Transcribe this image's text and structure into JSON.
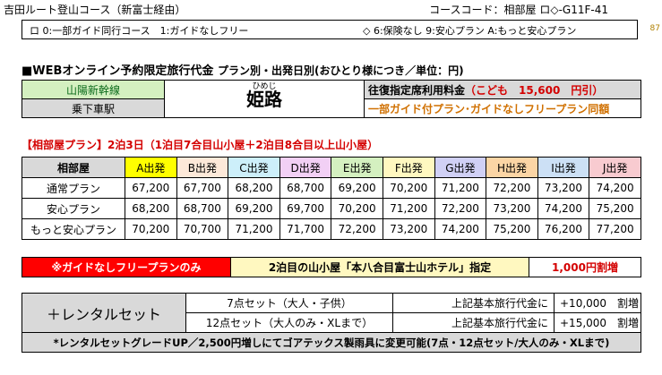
{
  "header": {
    "course_name": "吉田ルート登山コース（新富士経由）",
    "course_code": "コースコード：相部屋 ロ◇-G11F-41"
  },
  "options": {
    "guide": "ロ 0:一部ガイド同行コース　1:ガイドなしフリー",
    "insurance": "◇ 6:保険なし 9:安心プラン A:もっと安心プラン"
  },
  "side_number": "87",
  "title": {
    "main": "■WEBオンライン予約限定旅行代金",
    "sub": "プラン別・出発日別(おひとり様につき／単位：円)"
  },
  "info": {
    "line_label": "山陽新幹線",
    "station_label": "乗下車駅",
    "station_ruby": "ひめじ",
    "station_name": "姫路",
    "fare_label": "往復指定席利用料金",
    "fare_child": "（こども　15,600　円引）",
    "plan_note": "一部ガイド付プラン･ガイドなしフリープラン同額"
  },
  "plan": {
    "title": "【相部屋プラン】2泊3日（1泊目7合目山小屋＋2泊目8合目以上山小屋）",
    "corner_label": "相部屋",
    "departures": [
      {
        "label": "A出発",
        "color": "#ffff00"
      },
      {
        "label": "B出発",
        "color": "#fde9d9"
      },
      {
        "label": "C出発",
        "color": "#cdeffa"
      },
      {
        "label": "D出発",
        "color": "#f2d0f5"
      },
      {
        "label": "E出発",
        "color": "#d4f0c0"
      },
      {
        "label": "F出発",
        "color": "#fff8c0"
      },
      {
        "label": "G出発",
        "color": "#d0d0f5"
      },
      {
        "label": "H出発",
        "color": "#fbd5a5"
      },
      {
        "label": "I出発",
        "color": "#cce0f5"
      },
      {
        "label": "J出発",
        "color": "#f8cbd0"
      }
    ],
    "rows": [
      {
        "label": "通常プラン",
        "prices": [
          "67,200",
          "67,700",
          "68,200",
          "68,700",
          "69,200",
          "70,200",
          "71,200",
          "72,200",
          "73,200",
          "74,200"
        ]
      },
      {
        "label": "安心プラン",
        "prices": [
          "68,200",
          "68,700",
          "69,200",
          "69,700",
          "70,200",
          "71,200",
          "72,200",
          "73,200",
          "74,200",
          "75,200"
        ]
      },
      {
        "label": "もっと安心プラン",
        "prices": [
          "70,200",
          "70,700",
          "71,200",
          "71,700",
          "72,200",
          "73,200",
          "74,200",
          "75,200",
          "76,200",
          "77,200"
        ]
      }
    ]
  },
  "banner": {
    "no_guide": "※ガイドなしフリープランのみ",
    "hut_note": "2泊目の山小屋「本八合目富士山ホテル」指定",
    "surcharge": "1,000円割増"
  },
  "rental": {
    "label": "＋レンタルセット",
    "set7": "7点セット（大人・子供）",
    "set12": "12点セット（大人のみ・XLまで）",
    "base_text": "上記基本旅行代金に",
    "set7_amount": "+10,000　割増",
    "set12_amount": "+15,000　割増",
    "note": "*レンタルセットグレードUP／2,500円増しにてゴアテックス製雨具に変更可能(7点・12点セット/大人のみ・XLまで)"
  }
}
